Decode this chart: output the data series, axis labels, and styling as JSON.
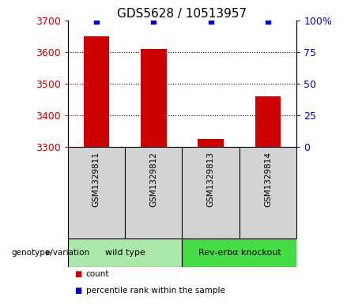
{
  "title": "GDS5628 / 10513957",
  "samples": [
    "GSM1329811",
    "GSM1329812",
    "GSM1329813",
    "GSM1329814"
  ],
  "counts": [
    3650,
    3610,
    3325,
    3460
  ],
  "percentiles": [
    99,
    99,
    99,
    99
  ],
  "ylim_left": [
    3300,
    3700
  ],
  "ylim_right": [
    0,
    100
  ],
  "yticks_left": [
    3300,
    3400,
    3500,
    3600,
    3700
  ],
  "yticks_right": [
    0,
    25,
    50,
    75,
    100
  ],
  "ytick_labels_right": [
    "0",
    "25",
    "50",
    "75",
    "100%"
  ],
  "bar_color": "#cc0000",
  "dot_color": "#0000cc",
  "left_tick_color": "#cc0000",
  "right_tick_color": "#0000cc",
  "groups": [
    {
      "label": "wild type",
      "samples": [
        0,
        1
      ],
      "color": "#aae8aa"
    },
    {
      "label": "Rev-erbα knockout",
      "samples": [
        2,
        3
      ],
      "color": "#44dd44"
    }
  ],
  "genotype_label": "genotype/variation",
  "legend_items": [
    {
      "color": "#cc0000",
      "label": "count"
    },
    {
      "color": "#0000cc",
      "label": "percentile rank within the sample"
    }
  ],
  "background_color": "#ffffff",
  "plot_bg_color": "#ffffff",
  "sample_box_color": "#d3d3d3",
  "grid_color": "#000000",
  "title_fontsize": 11,
  "axis_fontsize": 9,
  "bar_width": 0.45
}
